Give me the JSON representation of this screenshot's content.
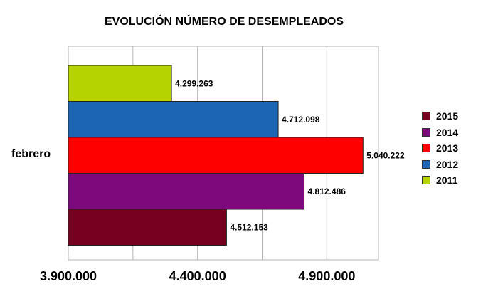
{
  "chart_data": {
    "type": "bar",
    "orientation": "horizontal",
    "title": "EVOLUCIÓN NÚMERO DE DESEMPLEADOS",
    "categories": [
      "febrero"
    ],
    "series": [
      {
        "name": "2011",
        "values": [
          4299263
        ],
        "label": "4.299.263",
        "color": "#b5d300"
      },
      {
        "name": "2012",
        "values": [
          4712098
        ],
        "label": "4.712.098",
        "color": "#1c64b4"
      },
      {
        "name": "2013",
        "values": [
          5040222
        ],
        "label": "5.040.222",
        "color": "#ff0000"
      },
      {
        "name": "2014",
        "values": [
          4812486
        ],
        "label": "4.812.486",
        "color": "#7e097c"
      },
      {
        "name": "2015",
        "values": [
          4512153
        ],
        "label": "4.512.153",
        "color": "#770020"
      }
    ],
    "xlim": [
      3900000,
      5100000
    ],
    "ticks": [
      {
        "value": 3900000,
        "label": "3.900.000"
      },
      {
        "value": 4400000,
        "label": "4.400.000"
      },
      {
        "value": 4900000,
        "label": "4.900.000"
      }
    ],
    "minor_gridlines": [
      4150000,
      4650000
    ],
    "grid": true,
    "legend_position": "right",
    "legend_order": [
      "2015",
      "2014",
      "2013",
      "2012",
      "2011"
    ]
  }
}
